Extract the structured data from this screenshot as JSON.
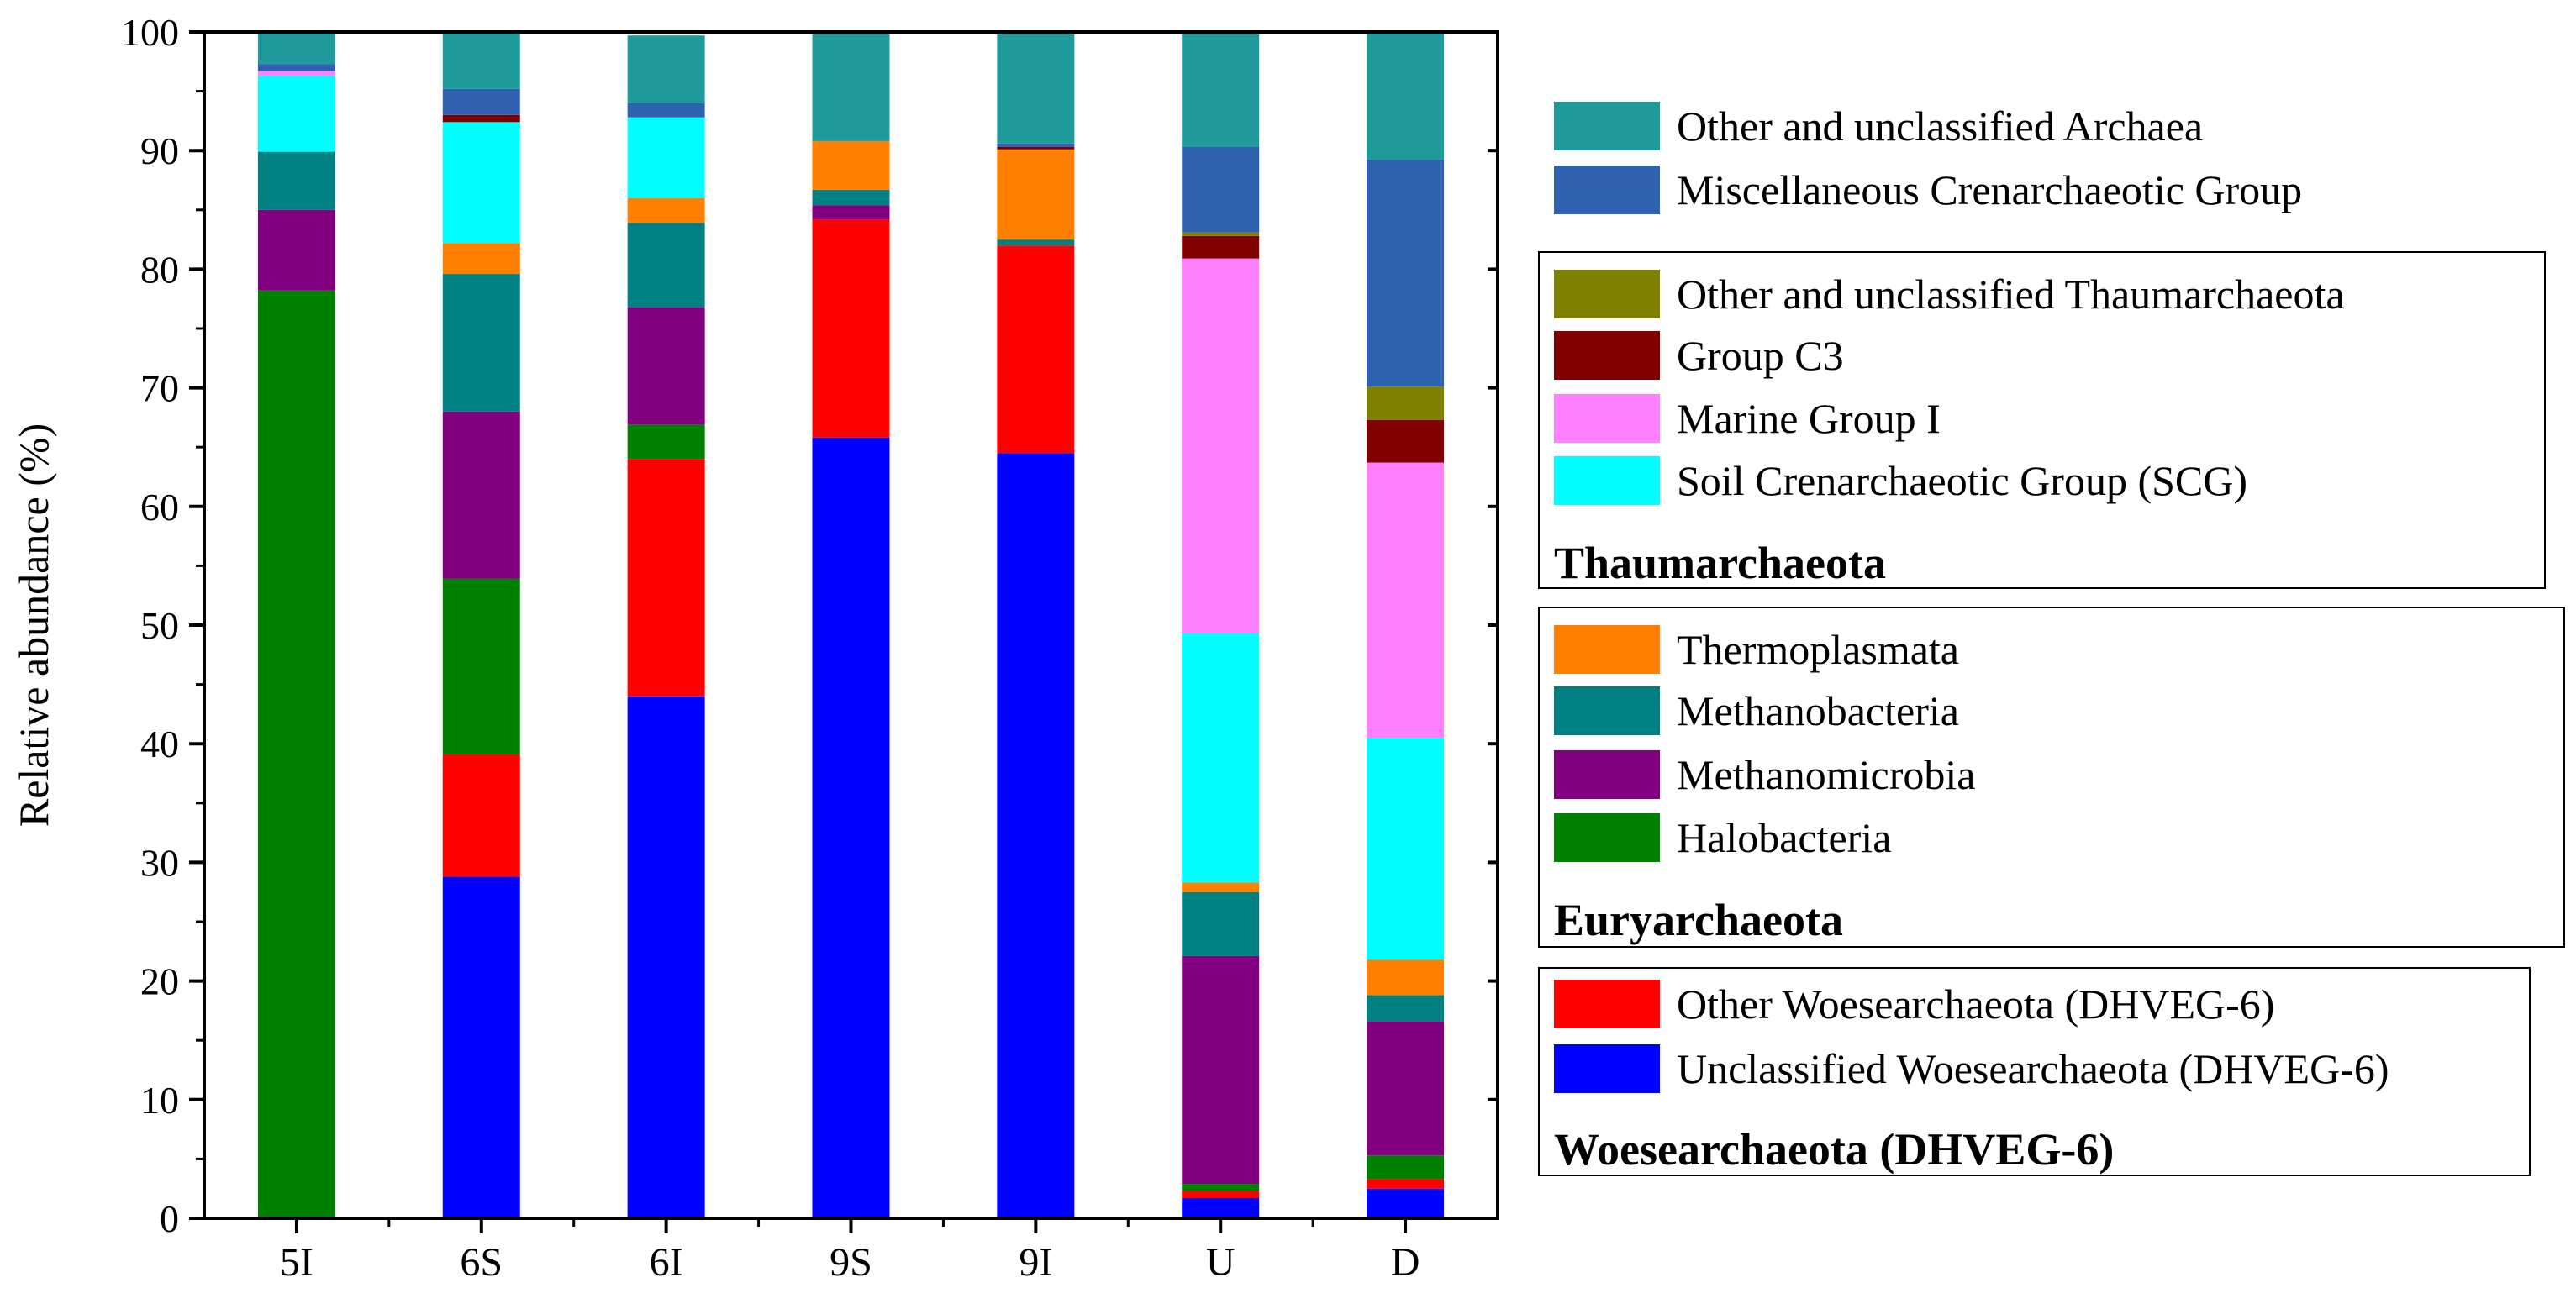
{
  "chart_data": {
    "type": "stacked-bar",
    "categories": [
      "5I",
      "6S",
      "6I",
      "9S",
      "9I",
      "U",
      "D"
    ],
    "ylabel": "Relative abundance (%)",
    "xlabel": "",
    "ylim": [
      0,
      100
    ],
    "yticks": [
      "0",
      "10",
      "20",
      "30",
      "40",
      "50",
      "60",
      "70",
      "80",
      "90",
      "100"
    ],
    "series": [
      {
        "key": "unclassified_woes",
        "name": "Unclassified Woesearchaeota (DHVEG-6)",
        "color": "#0000FF",
        "values": [
          0,
          28.8,
          44.0,
          65.8,
          64.5,
          1.7,
          2.5
        ]
      },
      {
        "key": "other_woes",
        "name": "Other Woesearchaeota (DHVEG-6)",
        "color": "#FF0000",
        "values": [
          0,
          10.3,
          20.0,
          18.4,
          17.5,
          0.6,
          0.8
        ]
      },
      {
        "key": "halobacteria",
        "name": "Halobacteria",
        "color": "#008000",
        "values": [
          78.2,
          14.8,
          2.9,
          0,
          0,
          0.6,
          2.0
        ]
      },
      {
        "key": "methanomicrobia",
        "name": "Methanomicrobia",
        "color": "#800080",
        "values": [
          6.8,
          14.1,
          9.9,
          1.2,
          0,
          19.2,
          11.3
        ]
      },
      {
        "key": "methanobacteria",
        "name": "Methanobacteria",
        "color": "#008080",
        "values": [
          4.9,
          11.6,
          7.1,
          1.3,
          0.5,
          5.4,
          2.2
        ]
      },
      {
        "key": "thermoplasmata",
        "name": "Thermoplasmata",
        "color": "#FF8000",
        "values": [
          0,
          2.6,
          2.1,
          4.1,
          7.6,
          0.8,
          3.0
        ]
      },
      {
        "key": "scg",
        "name": "Soil Crenarchaeotic Group (SCG)",
        "color": "#00FFFF",
        "values": [
          6.4,
          10.2,
          6.8,
          0,
          0,
          21.0,
          18.7
        ]
      },
      {
        "key": "mgi",
        "name": "Marine Group I",
        "color": "#FF80FF",
        "values": [
          0.4,
          0,
          0,
          0,
          0,
          31.6,
          23.2
        ]
      },
      {
        "key": "c3",
        "name": "Group C3",
        "color": "#800000",
        "values": [
          0,
          0.6,
          0,
          0,
          0.2,
          1.9,
          3.6
        ]
      },
      {
        "key": "other_thaum",
        "name": "Other and unclassified Thaumarchaeota",
        "color": "#808000",
        "values": [
          0,
          0,
          0,
          0,
          0,
          0.3,
          2.8
        ]
      },
      {
        "key": "mcg",
        "name": "Miscellaneous Crenarchaeotic Group",
        "color": "#2E62B0",
        "values": [
          0.6,
          2.2,
          1.2,
          0,
          0.3,
          7.2,
          19.1
        ]
      },
      {
        "key": "other_archaea",
        "name": "Other and unclassified Archaea",
        "color": "#1F9A9A",
        "values": [
          2.7,
          4.9,
          5.7,
          9.0,
          9.2,
          9.5,
          10.8
        ]
      }
    ],
    "legend_groups": [
      {
        "title": "",
        "items": [
          "other_archaea",
          "mcg"
        ]
      },
      {
        "title": "Thaumarchaeota",
        "items": [
          "other_thaum",
          "c3",
          "mgi",
          "scg"
        ]
      },
      {
        "title": "Euryarchaeota",
        "items": [
          "thermoplasmata",
          "methanobacteria",
          "methanomicrobia",
          "halobacteria"
        ]
      },
      {
        "title": "Woesearchaeota (DHVEG-6)",
        "items": [
          "other_woes",
          "unclassified_woes"
        ]
      }
    ]
  }
}
